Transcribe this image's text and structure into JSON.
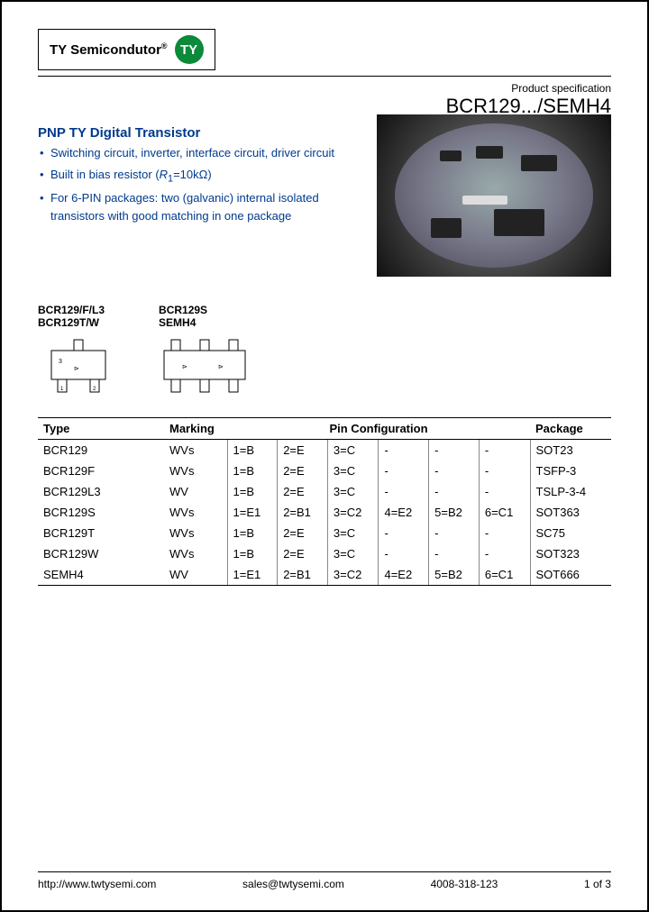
{
  "header": {
    "brand": "TY Semicondutor",
    "reg": "®",
    "logo_letters": "TY",
    "product_spec_label": "Product specification",
    "part_title": "BCR129.../SEMH4",
    "brand_color": "#0b8a3a"
  },
  "title": "PNP TY Digital Transistor",
  "title_color": "#003a8c",
  "bullets": [
    "Switching circuit, inverter, interface circuit, driver circuit",
    "Built in bias resistor (R₁=10kΩ)",
    "For 6-PIN packages: two (galvanic) internal isolated transistors with good matching in one package"
  ],
  "pkg_labels": {
    "left_line1": "BCR129/F/L3",
    "left_line2": "BCR129T/W",
    "right_line1": "BCR129S",
    "right_line2": "SEMH4"
  },
  "table": {
    "headers": [
      "Type",
      "Marking",
      "Pin Configuration",
      "Package"
    ],
    "pinconfig_colspan": 6,
    "rows": [
      {
        "type": "BCR129",
        "marking": "WVs",
        "pins": [
          "1=B",
          "2=E",
          "3=C",
          "-",
          "-",
          "-"
        ],
        "package": "SOT23"
      },
      {
        "type": "BCR129F",
        "marking": "WVs",
        "pins": [
          "1=B",
          "2=E",
          "3=C",
          "-",
          "-",
          "-"
        ],
        "package": "TSFP-3"
      },
      {
        "type": "BCR129L3",
        "marking": "WV",
        "pins": [
          "1=B",
          "2=E",
          "3=C",
          "-",
          "-",
          "-"
        ],
        "package": "TSLP-3-4"
      },
      {
        "type": "BCR129S",
        "marking": "WVs",
        "pins": [
          "1=E1",
          "2=B1",
          "3=C2",
          "4=E2",
          "5=B2",
          "6=C1"
        ],
        "package": "SOT363"
      },
      {
        "type": "BCR129T",
        "marking": "WVs",
        "pins": [
          "1=B",
          "2=E",
          "3=C",
          "-",
          "-",
          "-"
        ],
        "package": "SC75"
      },
      {
        "type": "BCR129W",
        "marking": "WVs",
        "pins": [
          "1=B",
          "2=E",
          "3=C",
          "-",
          "-",
          "-"
        ],
        "package": "SOT323"
      },
      {
        "type": "SEMH4",
        "marking": "WV",
        "pins": [
          "1=E1",
          "2=B1",
          "3=C2",
          "4=E2",
          "5=B2",
          "6=C1"
        ],
        "package": "SOT666"
      }
    ]
  },
  "footer": {
    "url": "http://www.twtysemi.com",
    "email": "sales@twtysemi.com",
    "phone": "4008-318-123",
    "page": "1 of 3"
  }
}
